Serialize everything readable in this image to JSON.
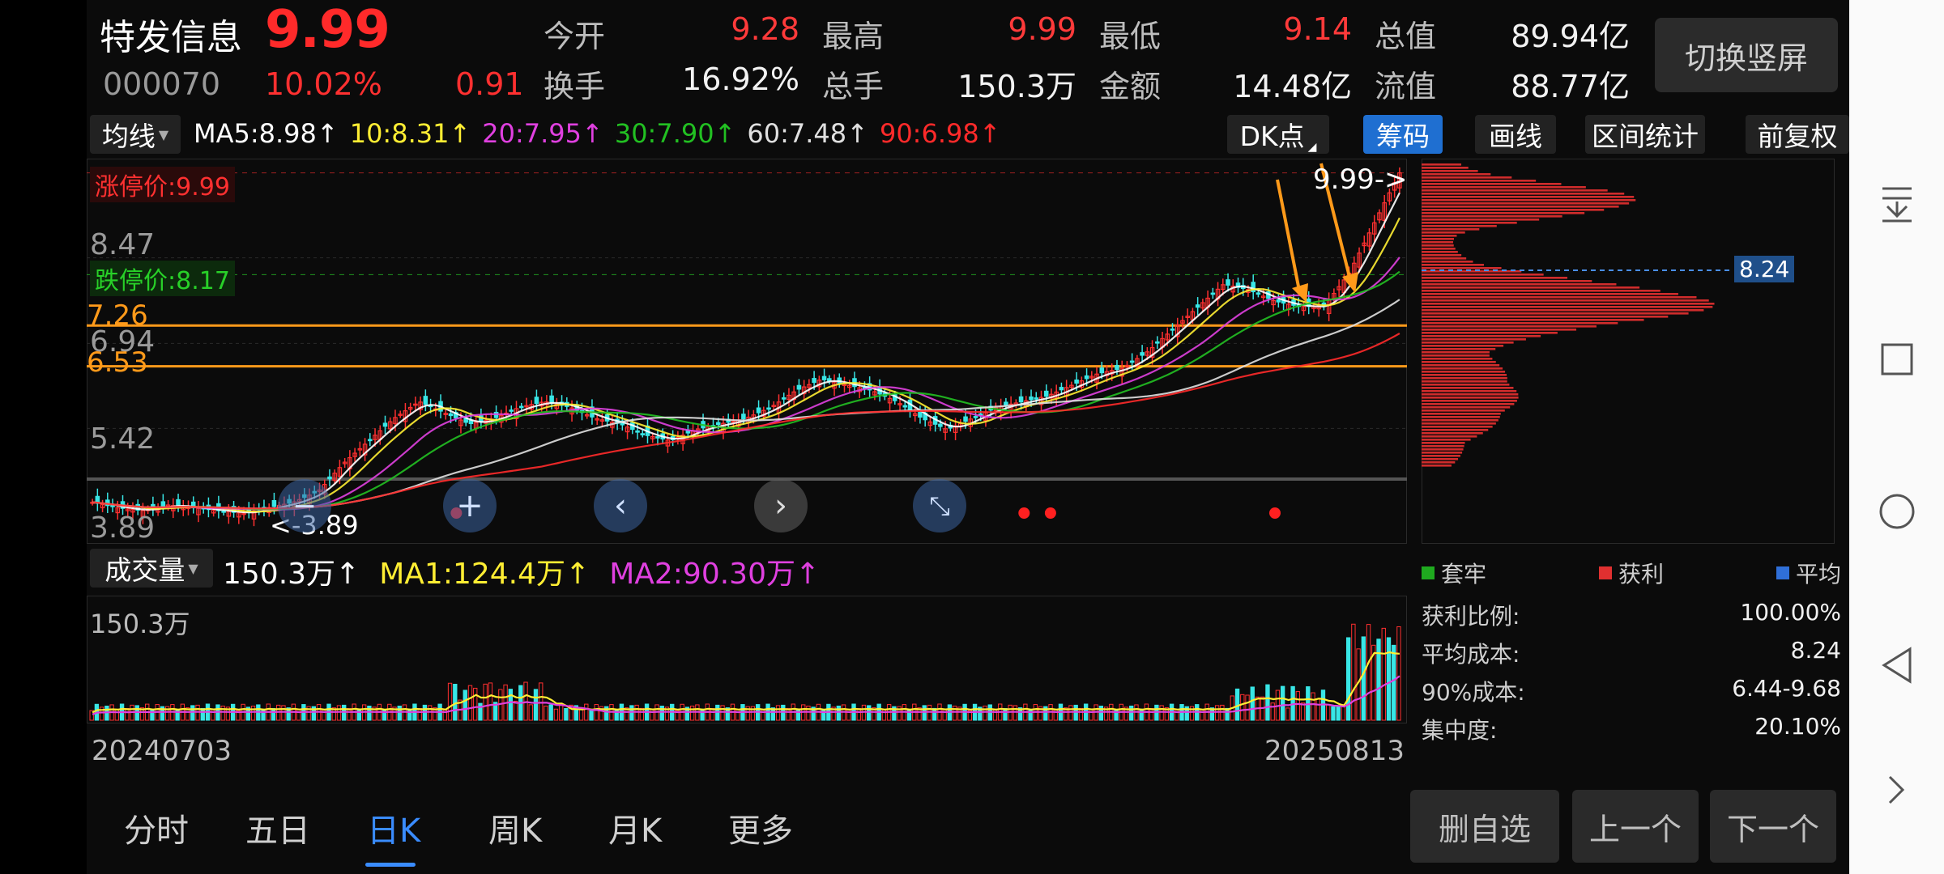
{
  "header": {
    "name": "特发信息",
    "price": "9.99",
    "code": "000070",
    "change_pct": "10.02%",
    "change_amt": "0.91",
    "fields": [
      {
        "label": "今开",
        "value": "9.28",
        "red": true
      },
      {
        "label": "最高",
        "value": "9.99",
        "red": true
      },
      {
        "label": "最低",
        "value": "9.14",
        "red": true
      },
      {
        "label": "总值",
        "value": "89.94亿",
        "red": false
      },
      {
        "label": "换手",
        "value": "16.92%",
        "red": false
      },
      {
        "label": "总手",
        "value": "150.3万",
        "red": false
      },
      {
        "label": "金额",
        "value": "14.48亿",
        "red": false
      },
      {
        "label": "流值",
        "value": "88.77亿",
        "red": false
      }
    ],
    "switch_button": "切换竖屏"
  },
  "ma_bar": {
    "indicator": "均线",
    "items": [
      {
        "text": "MA5:8.98↑",
        "color": "#ffffff"
      },
      {
        "text": "10:8.31↑",
        "color": "#ffee33"
      },
      {
        "text": "20:7.95↑",
        "color": "#e040e0"
      },
      {
        "text": "30:7.90↑",
        "color": "#22c022"
      },
      {
        "text": "60:7.48↑",
        "color": "#e0e0e0"
      },
      {
        "text": "90:6.98↑",
        "color": "#ff2a2a"
      }
    ],
    "buttons": [
      "DK点",
      "筹码",
      "画线",
      "区间统计",
      "前复权"
    ],
    "active_button": "筹码"
  },
  "price_chart": {
    "limit_up_label": "涨停价:9.99",
    "limit_down_label": "跌停价:8.17",
    "y_labels": [
      "8.47",
      "7.26",
      "6.94",
      "6.53",
      "5.42",
      "3.89"
    ],
    "top_value": "9.99",
    "max_marker": "9.99->",
    "min_marker": "<-3.89",
    "cost_tag": "8.24",
    "hlines": [
      7.26,
      6.53
    ]
  },
  "chart_data": {
    "type": "candlestick",
    "x_range": [
      "20240703",
      "20250813"
    ],
    "ylim": [
      3.89,
      9.99
    ],
    "ma_last": {
      "MA5": 8.98,
      "MA10": 8.31,
      "MA20": 7.95,
      "MA30": 7.9,
      "MA60": 7.48,
      "MA90": 6.98
    },
    "close_path": [
      4.1,
      4.0,
      3.95,
      4.05,
      4.0,
      3.95,
      3.9,
      4.0,
      4.1,
      4.3,
      4.8,
      5.2,
      5.6,
      5.9,
      5.7,
      5.5,
      5.6,
      5.8,
      5.9,
      5.8,
      5.6,
      5.5,
      5.3,
      5.2,
      5.4,
      5.5,
      5.6,
      5.8,
      6.1,
      6.3,
      6.2,
      6.1,
      5.9,
      5.6,
      5.4,
      5.6,
      5.8,
      5.9,
      6.0,
      6.2,
      6.4,
      6.5,
      6.8,
      7.2,
      7.6,
      8.0,
      7.9,
      7.7,
      7.6,
      7.6,
      8.2,
      9.1,
      9.99
    ],
    "volume_label": "150.3万"
  },
  "volume_bar": {
    "indicator": "成交量",
    "items": [
      {
        "text": "150.3万↑",
        "color": "#ffffff"
      },
      {
        "text": "MA1:124.4万↑",
        "color": "#ffee33"
      },
      {
        "text": "MA2:90.30万↑",
        "color": "#e040e0"
      }
    ],
    "top_label": "150.3万"
  },
  "chip_panel": {
    "legend": [
      {
        "label": "套牢",
        "color": "#1faa1f"
      },
      {
        "label": "获利",
        "color": "#e03030"
      },
      {
        "label": "平均",
        "color": "#2f6fd8"
      }
    ],
    "stats": [
      {
        "label": "获利比例:",
        "value": "100.00%"
      },
      {
        "label": "平均成本:",
        "value": "8.24"
      },
      {
        "label": "90%成本:",
        "value": "6.44-9.68"
      },
      {
        "label": "集中度:",
        "value": "20.10%"
      }
    ]
  },
  "date_labels": {
    "start": "20240703",
    "end": "20250813"
  },
  "tabs": [
    "分时",
    "五日",
    "日K",
    "周K",
    "月K",
    "更多"
  ],
  "active_tab": "日K",
  "bottom_buttons": [
    "删自选",
    "上一个",
    "下一个"
  ],
  "system_nav": [
    "menu-down-icon",
    "square-icon",
    "circle-icon",
    "triangle-back-icon",
    "chevron-right-icon"
  ]
}
